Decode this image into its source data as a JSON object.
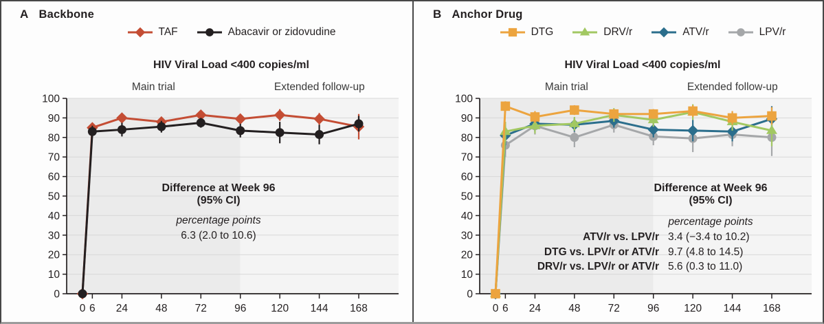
{
  "chart_data": [
    {
      "type": "line",
      "letter": "A",
      "heading": "Backbone",
      "title": "HIV Viral Load <400 copies/ml",
      "region_labels": {
        "main": "Main trial",
        "extended": "Extended follow-up"
      },
      "split_week": 96,
      "x": [
        0,
        6,
        24,
        48,
        72,
        96,
        120,
        144,
        168
      ],
      "y_ticks": [
        0,
        10,
        20,
        30,
        40,
        50,
        60,
        70,
        80,
        90,
        100
      ],
      "ylim": [
        0,
        100
      ],
      "colors": {
        "main_bg": "#ebebeb",
        "extended_bg": "#f4f4f4",
        "grid": "#d8d8d8",
        "axis": "#231f20"
      },
      "legend": [
        {
          "label": "TAF",
          "marker": "diamond",
          "color": "#c44d34"
        },
        {
          "label": "Abacavir or zidovudine",
          "marker": "circle",
          "color": "#231f20"
        }
      ],
      "series": [
        {
          "name": "TAF",
          "marker": "diamond",
          "color": "#c44d34",
          "values": [
            0,
            85,
            90,
            88,
            91.5,
            89.5,
            91.5,
            89.5,
            85.5
          ],
          "ci": [
            0,
            2.5,
            2,
            2,
            2,
            2.5,
            3,
            3,
            6.5
          ]
        },
        {
          "name": "Abacavir or zidovudine",
          "marker": "circle",
          "color": "#231f20",
          "values": [
            0,
            83,
            84,
            85.5,
            87.5,
            83.5,
            82.5,
            81.5,
            87
          ],
          "ci": [
            0,
            3,
            3.5,
            3,
            2.5,
            3.5,
            5.5,
            5,
            4
          ]
        }
      ],
      "annotation": {
        "title_line1": "Difference at Week 96",
        "title_line2": "(95% CI)",
        "unit": "percentage points",
        "rows": [
          {
            "label": "",
            "value": "6.3 (2.0 to 10.6)"
          }
        ]
      }
    },
    {
      "type": "line",
      "letter": "B",
      "heading": "Anchor Drug",
      "title": "HIV Viral Load <400 copies/ml",
      "region_labels": {
        "main": "Main trial",
        "extended": "Extended follow-up"
      },
      "split_week": 96,
      "x": [
        0,
        6,
        24,
        48,
        72,
        96,
        120,
        144,
        168
      ],
      "y_ticks": [
        0,
        10,
        20,
        30,
        40,
        50,
        60,
        70,
        80,
        90,
        100
      ],
      "ylim": [
        0,
        100
      ],
      "colors": {
        "main_bg": "#ebebeb",
        "extended_bg": "#f4f4f4",
        "grid": "#d8d8d8",
        "axis": "#231f20"
      },
      "legend": [
        {
          "label": "DTG",
          "marker": "square",
          "color": "#eca43f"
        },
        {
          "label": "DRV/r",
          "marker": "triangle",
          "color": "#a2c862"
        },
        {
          "label": "ATV/r",
          "marker": "diamond",
          "color": "#2b6e8c"
        },
        {
          "label": "LPV/r",
          "marker": "circle",
          "color": "#a5a7a9"
        }
      ],
      "series": [
        {
          "name": "LPV/r",
          "marker": "circle",
          "color": "#a5a7a9",
          "values": [
            0,
            76,
            86,
            80,
            86.5,
            80.5,
            79.5,
            81.5,
            80
          ],
          "ci": [
            0,
            6,
            4.5,
            5,
            4,
            4.5,
            7,
            6,
            9.5
          ]
        },
        {
          "name": "ATV/r",
          "marker": "diamond",
          "color": "#2b6e8c",
          "values": [
            0,
            81,
            87,
            86.5,
            88.5,
            84,
            83.5,
            83,
            89.5
          ],
          "ci": [
            0,
            5,
            4,
            3.5,
            3.5,
            4,
            5.5,
            5,
            6.5
          ]
        },
        {
          "name": "DRV/r",
          "marker": "triangle",
          "color": "#a2c862",
          "values": [
            0,
            83,
            86,
            87,
            91.5,
            89,
            93,
            88,
            83.5
          ],
          "ci": [
            0,
            5,
            4,
            3.5,
            3.5,
            3.5,
            4,
            4.5,
            8
          ]
        },
        {
          "name": "DTG",
          "marker": "square",
          "color": "#eca43f",
          "values": [
            0,
            96,
            90.5,
            94,
            92,
            92,
            93.5,
            90,
            91
          ],
          "ci": [
            0,
            2.5,
            3,
            2.5,
            2.5,
            2.5,
            3,
            3.5,
            4.5
          ]
        }
      ],
      "annotation": {
        "title_line1": "Difference at Week 96",
        "title_line2": "(95% CI)",
        "unit": "percentage points",
        "rows": [
          {
            "label": "ATV/r vs. LPV/r",
            "value": "3.4 (−3.4 to 10.2)"
          },
          {
            "label": "DTG vs. LPV/r or ATV/r",
            "value": "9.7 (4.8 to 14.5)"
          },
          {
            "label": "DRV/r vs. LPV/r or ATV/r",
            "value": "5.6 (0.3 to 11.0)"
          }
        ]
      }
    }
  ]
}
